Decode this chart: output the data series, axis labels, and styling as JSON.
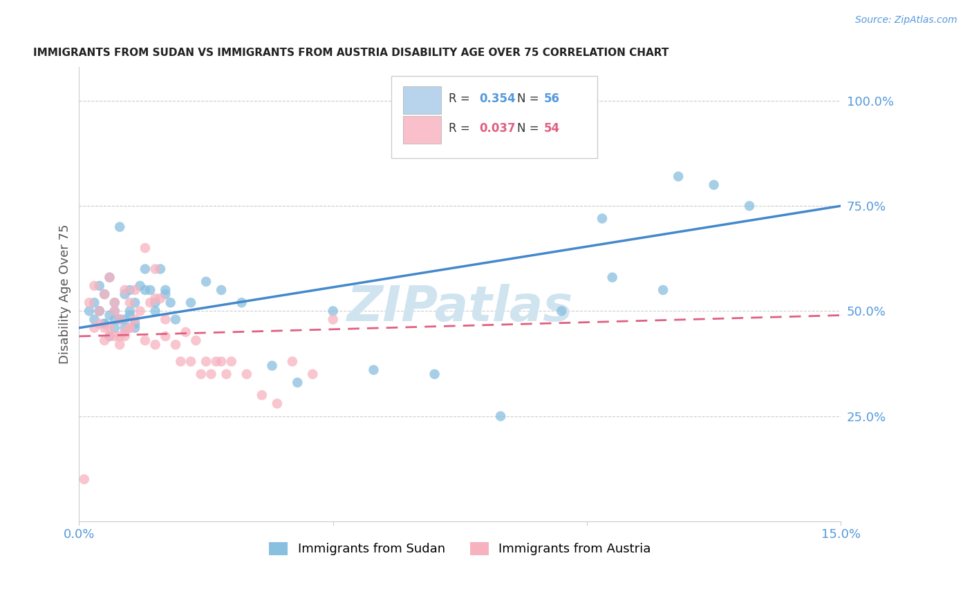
{
  "title": "IMMIGRANTS FROM SUDAN VS IMMIGRANTS FROM AUSTRIA DISABILITY AGE OVER 75 CORRELATION CHART",
  "source_text": "Source: ZipAtlas.com",
  "ylabel": "Disability Age Over 75",
  "ytick_labels": [
    "100.0%",
    "75.0%",
    "50.0%",
    "25.0%"
  ],
  "ytick_values": [
    1.0,
    0.75,
    0.5,
    0.25
  ],
  "xmin": 0.0,
  "xmax": 0.15,
  "ymin": 0.0,
  "ymax": 1.08,
  "sudan_color": "#89bfdf",
  "austria_color": "#f7b2c0",
  "sudan_line_color": "#4488cc",
  "austria_line_color": "#e06080",
  "watermark_color": "#d0e4f0",
  "grid_color": "#cccccc",
  "title_color": "#222222",
  "axis_label_color": "#5599dd",
  "legend_box_sudan": "#b8d4ec",
  "legend_box_austria": "#f9c0cc",
  "sudan_R": "0.354",
  "sudan_N": "56",
  "austria_R": "0.037",
  "austria_N": "54",
  "sudan_line_x0": 0.0,
  "sudan_line_x1": 0.15,
  "sudan_line_y0": 0.46,
  "sudan_line_y1": 0.75,
  "austria_line_x0": 0.0,
  "austria_line_x1": 0.15,
  "austria_line_y0": 0.44,
  "austria_line_y1": 0.49,
  "sudan_x": [
    0.002,
    0.003,
    0.004,
    0.004,
    0.005,
    0.005,
    0.006,
    0.006,
    0.007,
    0.007,
    0.007,
    0.008,
    0.008,
    0.009,
    0.009,
    0.01,
    0.01,
    0.011,
    0.011,
    0.012,
    0.013,
    0.014,
    0.015,
    0.016,
    0.017,
    0.018,
    0.003,
    0.004,
    0.005,
    0.006,
    0.007,
    0.008,
    0.009,
    0.01,
    0.011,
    0.013,
    0.015,
    0.017,
    0.019,
    0.022,
    0.025,
    0.028,
    0.032,
    0.038,
    0.043,
    0.05,
    0.058,
    0.07,
    0.083,
    0.095,
    0.105,
    0.115,
    0.125,
    0.103,
    0.118,
    0.132
  ],
  "sudan_y": [
    0.5,
    0.52,
    0.56,
    0.5,
    0.54,
    0.47,
    0.58,
    0.44,
    0.52,
    0.5,
    0.48,
    0.7,
    0.48,
    0.54,
    0.46,
    0.55,
    0.5,
    0.52,
    0.46,
    0.56,
    0.6,
    0.55,
    0.52,
    0.6,
    0.55,
    0.52,
    0.48,
    0.5,
    0.47,
    0.49,
    0.46,
    0.48,
    0.48,
    0.49,
    0.47,
    0.55,
    0.5,
    0.54,
    0.48,
    0.52,
    0.57,
    0.55,
    0.52,
    0.37,
    0.33,
    0.5,
    0.36,
    0.35,
    0.25,
    0.5,
    0.58,
    0.55,
    0.8,
    0.72,
    0.82,
    0.75
  ],
  "austria_x": [
    0.001,
    0.002,
    0.003,
    0.004,
    0.005,
    0.005,
    0.006,
    0.006,
    0.007,
    0.007,
    0.008,
    0.008,
    0.009,
    0.009,
    0.01,
    0.01,
    0.011,
    0.012,
    0.013,
    0.014,
    0.015,
    0.015,
    0.016,
    0.017,
    0.003,
    0.004,
    0.005,
    0.006,
    0.007,
    0.008,
    0.009,
    0.01,
    0.011,
    0.013,
    0.015,
    0.017,
    0.019,
    0.021,
    0.023,
    0.025,
    0.027,
    0.029,
    0.02,
    0.022,
    0.024,
    0.026,
    0.028,
    0.03,
    0.033,
    0.036,
    0.039,
    0.042,
    0.046,
    0.05
  ],
  "austria_y": [
    0.1,
    0.52,
    0.56,
    0.5,
    0.54,
    0.46,
    0.58,
    0.44,
    0.52,
    0.5,
    0.48,
    0.42,
    0.55,
    0.45,
    0.52,
    0.46,
    0.55,
    0.5,
    0.65,
    0.52,
    0.6,
    0.53,
    0.53,
    0.48,
    0.46,
    0.47,
    0.43,
    0.46,
    0.44,
    0.44,
    0.44,
    0.46,
    0.48,
    0.43,
    0.42,
    0.44,
    0.42,
    0.45,
    0.43,
    0.38,
    0.38,
    0.35,
    0.38,
    0.38,
    0.35,
    0.35,
    0.38,
    0.38,
    0.35,
    0.3,
    0.28,
    0.38,
    0.35,
    0.48
  ]
}
